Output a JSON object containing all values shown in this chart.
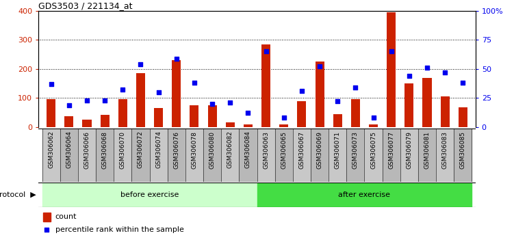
{
  "title": "GDS3503 / 221134_at",
  "categories": [
    "GSM306062",
    "GSM306064",
    "GSM306066",
    "GSM306068",
    "GSM306070",
    "GSM306072",
    "GSM306074",
    "GSM306076",
    "GSM306078",
    "GSM306080",
    "GSM306082",
    "GSM306084",
    "GSM306063",
    "GSM306065",
    "GSM306067",
    "GSM306069",
    "GSM306071",
    "GSM306073",
    "GSM306075",
    "GSM306077",
    "GSM306079",
    "GSM306081",
    "GSM306083",
    "GSM306085"
  ],
  "count": [
    95,
    38,
    25,
    42,
    95,
    185,
    65,
    230,
    75,
    75,
    15,
    10,
    285,
    10,
    88,
    225,
    45,
    95,
    10,
    395,
    150,
    170,
    105,
    68
  ],
  "percentile": [
    37,
    19,
    23,
    23,
    32,
    54,
    30,
    59,
    38,
    20,
    21,
    12,
    65,
    8,
    31,
    52,
    22,
    34,
    8,
    65,
    44,
    51,
    47,
    38
  ],
  "bar_color": "#cc2200",
  "dot_color": "#0000ee",
  "before_exercise_count": 12,
  "after_exercise_count": 12,
  "before_color": "#ccffcc",
  "after_color": "#44dd44",
  "protocol_label": "protocol",
  "before_label": "before exercise",
  "after_label": "after exercise",
  "left_ylim": [
    0,
    400
  ],
  "right_ylim": [
    0,
    100
  ],
  "left_yticks": [
    0,
    100,
    200,
    300,
    400
  ],
  "right_yticks": [
    0,
    25,
    50,
    75,
    100
  ],
  "right_yticklabels": [
    "0",
    "25",
    "50",
    "75",
    "100%"
  ],
  "left_tick_color": "#cc2200",
  "right_tick_color": "#0000ee",
  "grid_color": "#000000",
  "bg_color": "#ffffff",
  "plot_bg_color": "#ffffff",
  "tick_bg_color": "#c8c8c8",
  "tick_bg_color_alt": "#b8b8b8"
}
